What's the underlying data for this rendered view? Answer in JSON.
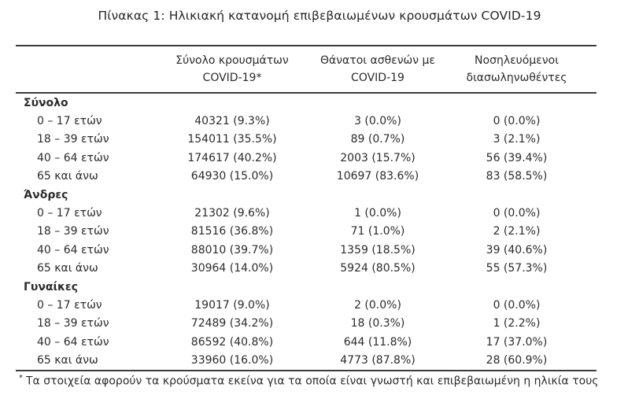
{
  "title": "Πίνακας 1: Ηλικιακή κατανομή επιβεβαιωμένων κρουσμάτων COVID-19",
  "table": {
    "columns": [
      {
        "line1": "Σύνολο κρουσμάτων",
        "line2": "COVID-19*"
      },
      {
        "line1": "Θάνατοι ασθενών με",
        "line2": "COVID-19"
      },
      {
        "line1": "Νοσηλευόμενοι",
        "line2": "διασωληνωθέντες"
      }
    ],
    "sections": [
      {
        "label": "Σύνολο",
        "rows": [
          {
            "label": "0 – 17 ετών",
            "cases": "40321 (9.3%)",
            "deaths": "3 (0.0%)",
            "intubated": "0 (0.0%)"
          },
          {
            "label": "18 – 39 ετών",
            "cases": "154011 (35.5%)",
            "deaths": "89 (0.7%)",
            "intubated": "3 (2.1%)"
          },
          {
            "label": "40 – 64 ετών",
            "cases": "174617 (40.2%)",
            "deaths": "2003 (15.7%)",
            "intubated": "56 (39.4%)"
          },
          {
            "label": "65 και άνω",
            "cases": "64930 (15.0%)",
            "deaths": "10697 (83.6%)",
            "intubated": "83 (58.5%)"
          }
        ]
      },
      {
        "label": "Άνδρες",
        "rows": [
          {
            "label": "0 – 17 ετών",
            "cases": "21302 (9.6%)",
            "deaths": "1 (0.0%)",
            "intubated": "0 (0.0%)"
          },
          {
            "label": "18 – 39 ετών",
            "cases": "81516 (36.8%)",
            "deaths": "71 (1.0%)",
            "intubated": "2 (2.1%)"
          },
          {
            "label": "40 – 64 ετών",
            "cases": "88010 (39.7%)",
            "deaths": "1359 (18.5%)",
            "intubated": "39 (40.6%)"
          },
          {
            "label": "65 και άνω",
            "cases": "30964 (14.0%)",
            "deaths": "5924 (80.5%)",
            "intubated": "55 (57.3%)"
          }
        ]
      },
      {
        "label": "Γυναίκες",
        "rows": [
          {
            "label": "0 – 17 ετών",
            "cases": "19017 (9.0%)",
            "deaths": "2 (0.0%)",
            "intubated": "0 (0.0%)"
          },
          {
            "label": "18 – 39 ετών",
            "cases": "72489 (34.2%)",
            "deaths": "18 (0.3%)",
            "intubated": "1 (2.2%)"
          },
          {
            "label": "40 – 64 ετών",
            "cases": "86592 (40.8%)",
            "deaths": "644 (11.8%)",
            "intubated": "17 (37.0%)"
          },
          {
            "label": "65 και άνω",
            "cases": "33960 (16.0%)",
            "deaths": "4773 (87.8%)",
            "intubated": "28 (60.9%)"
          }
        ]
      }
    ]
  },
  "footnote": {
    "marker": "*",
    "text": "Τα στοιχεία αφορούν τα κρούσματα εκείνα για τα οποία είναι γνωστή και επιβεβαιωμένη η ηλικία τους"
  }
}
